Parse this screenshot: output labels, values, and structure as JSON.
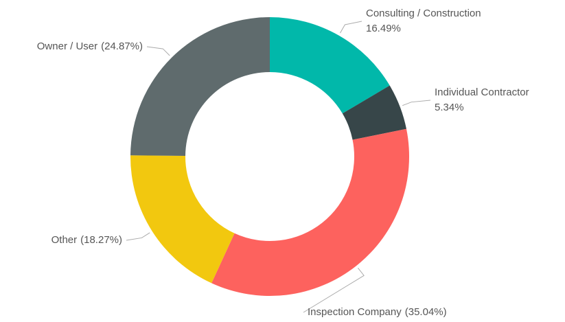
{
  "chart_data": {
    "type": "donut",
    "categories": [
      "Consulting / Construction",
      "Individual Contractor",
      "Inspection Company",
      "Other",
      "Owner / User"
    ],
    "values": [
      16.49,
      5.34,
      35.04,
      18.27,
      24.87
    ],
    "value_labels": [
      "16.49%",
      "5.34%",
      "(35.04%)",
      "(18.27%)",
      "(24.87%)"
    ],
    "colors": [
      "#01b8aa",
      "#374649",
      "#fd625e",
      "#f2c80f",
      "#5f6b6d"
    ]
  }
}
